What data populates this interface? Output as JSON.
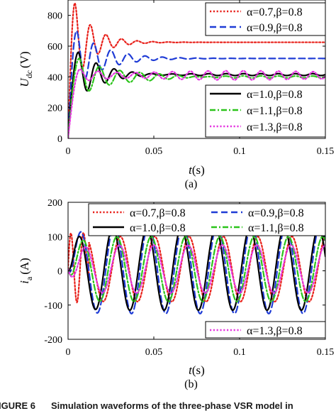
{
  "chart_data": [
    {
      "type": "line",
      "panel_label": "(a)",
      "xlabel_italic": "t",
      "xlabel_unit": "(s)",
      "ylabel_main": "U",
      "ylabel_sub": "dc",
      "ylabel_unit": "(V)",
      "xlim": [
        0,
        0.15
      ],
      "ylim": [
        0,
        900
      ],
      "xticks": [
        0,
        0.05,
        0.1,
        0.15
      ],
      "xtick_labels": [
        "0",
        "0.05",
        "0.1",
        "0.15"
      ],
      "yticks": [
        0,
        200,
        400,
        600,
        800
      ],
      "ytick_labels": [
        "0",
        "200",
        "400",
        "600",
        "800"
      ],
      "grid": false,
      "legends": [
        {
          "placement": "top-right",
          "entries": [
            0,
            1
          ]
        },
        {
          "placement": "bottom-right",
          "entries": [
            2,
            3,
            4
          ]
        }
      ],
      "series": [
        {
          "name": "α=0.7,β=0.8",
          "color": "#e8201a",
          "dash": "dot",
          "final": 625,
          "peak": 880,
          "t_peak": 0.004,
          "overshoot_amp": 255,
          "freq": 110,
          "decay": 90,
          "rise": 0.004
        },
        {
          "name": "α=0.9,β=0.8",
          "color": "#1f3cd6",
          "dash": "dash",
          "final": 520,
          "peak": 700,
          "t_peak": 0.005,
          "overshoot_amp": 180,
          "freq": 100,
          "decay": 60,
          "rise": 0.005
        },
        {
          "name": "α=1.0,β=0.8",
          "color": "#000000",
          "dash": "solid",
          "final": 415,
          "peak": 560,
          "t_peak": 0.006,
          "overshoot_amp": 150,
          "freq": 95,
          "decay": 60,
          "rise": 0.006,
          "ripple": 6
        },
        {
          "name": "α=1.1,β=0.8",
          "color": "#2bc41a",
          "dash": "dashdot",
          "final": 400,
          "peak": 520,
          "t_peak": 0.0065,
          "overshoot_amp": 160,
          "freq": 85,
          "decay": 45,
          "rise": 0.0065,
          "ripple": 6
        },
        {
          "name": "α=1.3,β=0.8",
          "color": "#e535e0",
          "dash": "dot",
          "final": 410,
          "peak": 450,
          "t_peak": 0.007,
          "overshoot_amp": 130,
          "freq": 95,
          "decay": 12,
          "rise": 0.007,
          "ripple": 18
        }
      ]
    },
    {
      "type": "line",
      "panel_label": "(b)",
      "xlabel_italic": "t",
      "xlabel_unit": "(s)",
      "ylabel_main": "i",
      "ylabel_sub": "a",
      "ylabel_unit": "(A)",
      "xlim": [
        0,
        0.15
      ],
      "ylim": [
        -200,
        200
      ],
      "xticks": [
        0,
        0.05,
        0.1,
        0.15
      ],
      "xtick_labels": [
        "0",
        "0.05",
        "0.1",
        "0.15"
      ],
      "yticks": [
        -200,
        -100,
        0,
        100,
        200
      ],
      "ytick_labels": [
        "-200",
        "-100",
        "0",
        "100",
        "200"
      ],
      "grid": false,
      "legends": [
        {
          "placement": "top",
          "entries": [
            0,
            1,
            2,
            3
          ]
        },
        {
          "placement": "bottom-right",
          "entries": [
            4
          ]
        }
      ],
      "series": [
        {
          "name": "α=0.7,β=0.8",
          "color": "#e8201a",
          "dash": "dot",
          "amplitude": 95,
          "freq": 50,
          "phase": 0.55,
          "transient": "red"
        },
        {
          "name": "α=0.9,β=0.8",
          "color": "#1f3cd6",
          "dash": "dash",
          "amplitude": 130,
          "freq": 50,
          "phase": 0.2
        },
        {
          "name": "α=1.0,β=0.8",
          "color": "#000000",
          "dash": "solid",
          "amplitude": 120,
          "freq": 50,
          "phase": 0.1
        },
        {
          "name": "α=1.1,β=0.8",
          "color": "#2bc41a",
          "dash": "dashdot",
          "amplitude": 95,
          "freq": 50,
          "phase": 0.35
        },
        {
          "name": "α=1.3,β=0.8",
          "color": "#e535e0",
          "dash": "dot",
          "amplitude": 70,
          "freq": 50,
          "phase": 0.5
        }
      ]
    }
  ],
  "caption": {
    "label": "IGURE 6",
    "text": "Simulation waveforms of the three-phase VSR model in"
  }
}
